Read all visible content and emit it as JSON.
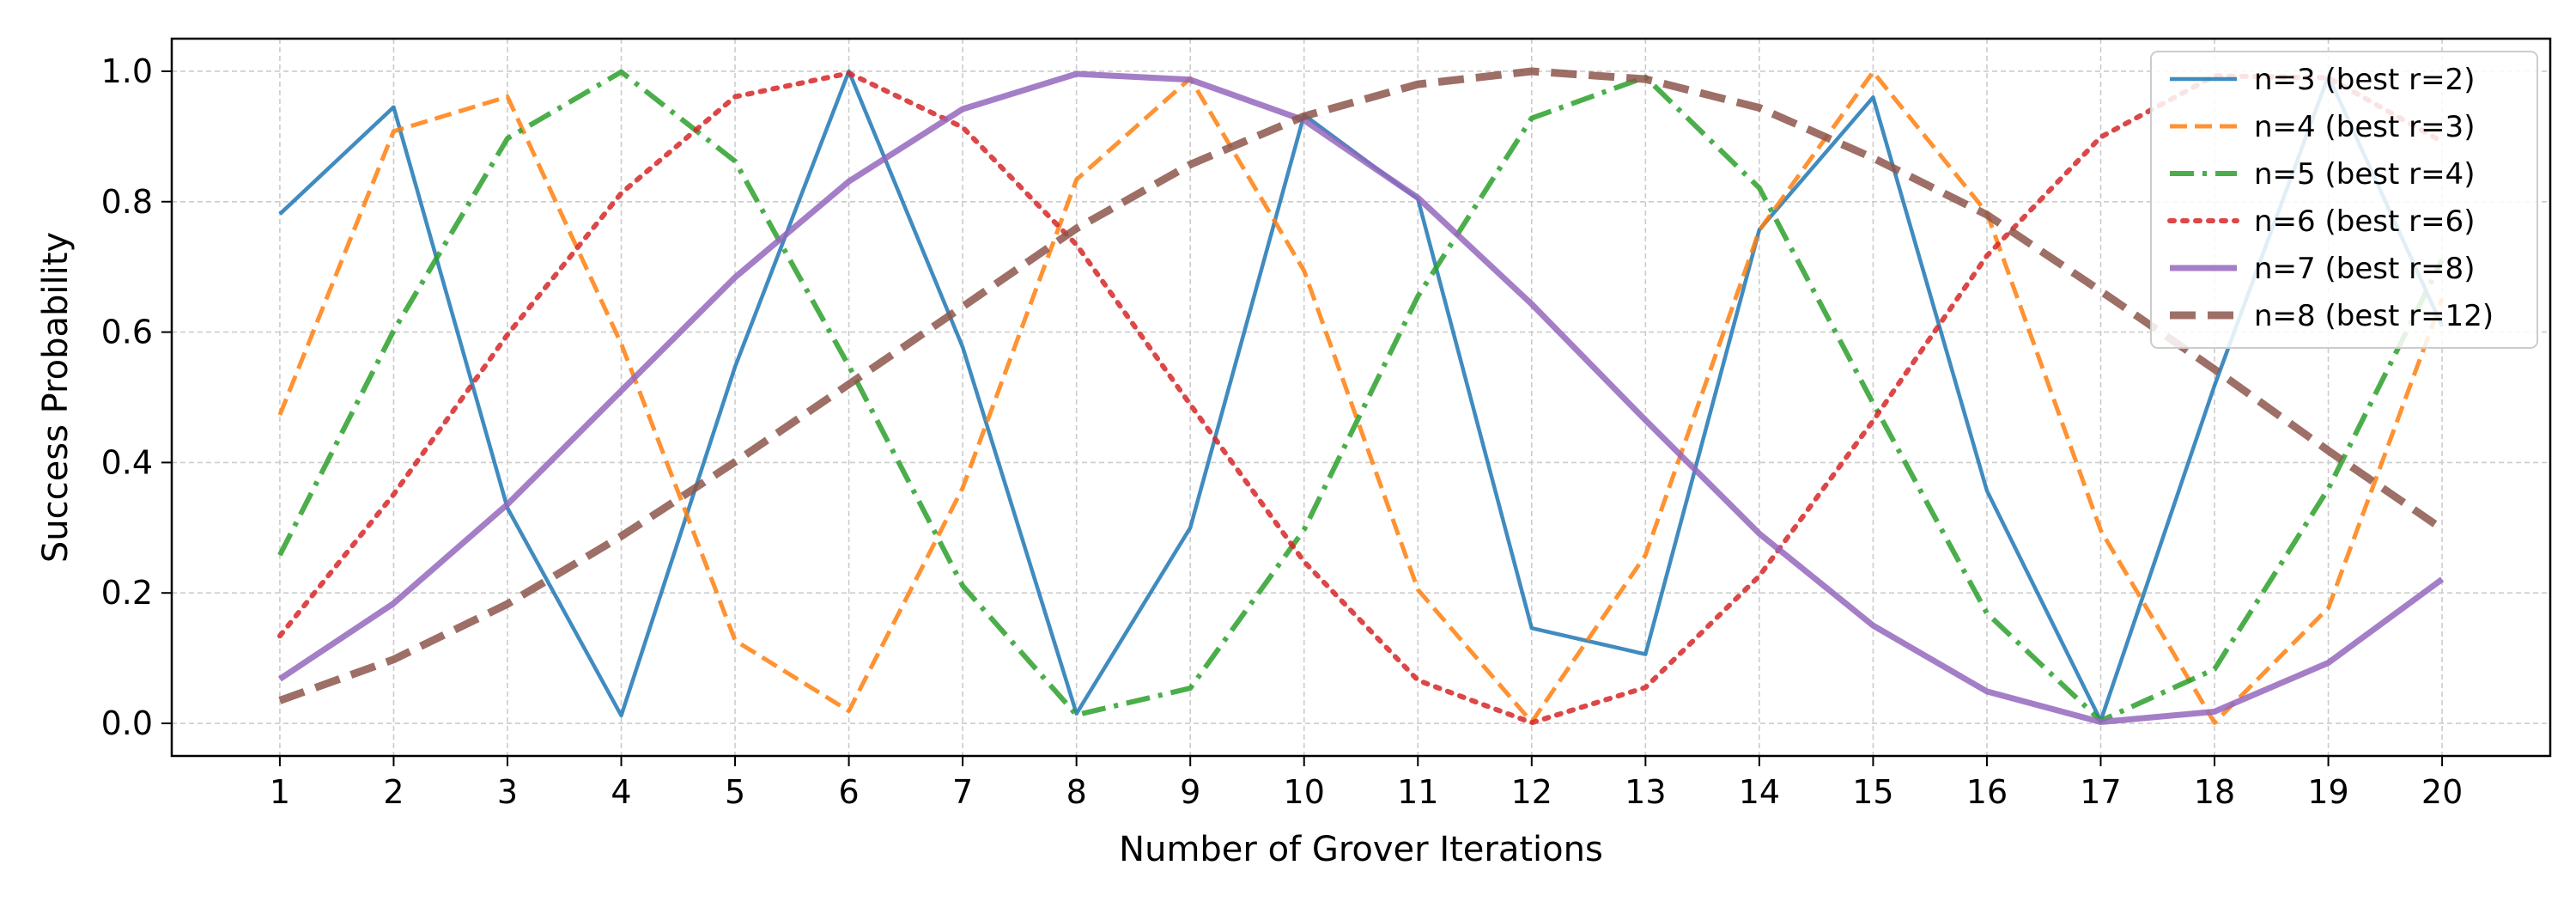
{
  "chart_data": {
    "type": "line",
    "title": "",
    "xlabel": "Number of Grover Iterations",
    "ylabel": "Success Probability",
    "xlim": [
      0.05,
      20.95
    ],
    "ylim": [
      -0.05,
      1.05
    ],
    "xticks": [
      1,
      2,
      3,
      4,
      5,
      6,
      7,
      8,
      9,
      10,
      11,
      12,
      13,
      14,
      15,
      16,
      17,
      18,
      19,
      20
    ],
    "yticks": [
      0.0,
      0.2,
      0.4,
      0.6,
      0.8,
      1.0
    ],
    "ytick_labels": [
      "0.0",
      "0.2",
      "0.4",
      "0.6",
      "0.8",
      "1.0"
    ],
    "grid": true,
    "legend_position": "top-right",
    "x": [
      1,
      2,
      3,
      4,
      5,
      6,
      7,
      8,
      9,
      10,
      11,
      12,
      13,
      14,
      15,
      16,
      17,
      18,
      19,
      20
    ],
    "series": [
      {
        "name": "n=3 (best r=2)",
        "color": "#1f77b4",
        "style": "solid",
        "values": [
          0.781,
          0.945,
          0.33,
          0.012,
          0.547,
          1.0,
          0.577,
          0.015,
          0.3,
          0.933,
          0.804,
          0.146,
          0.106,
          0.757,
          0.96,
          0.357,
          0.004,
          0.518,
          0.993,
          0.609
        ]
      },
      {
        "name": "n=4 (best r=3)",
        "color": "#ff7f0e",
        "style": "dashed",
        "values": [
          0.473,
          0.908,
          0.961,
          0.582,
          0.127,
          0.019,
          0.361,
          0.834,
          0.989,
          0.694,
          0.205,
          0.002,
          0.258,
          0.756,
          0.999,
          0.783,
          0.296,
          0.001,
          0.177,
          0.651
        ]
      },
      {
        "name": "n=5 (best r=4)",
        "color": "#2ca02c",
        "style": "dashdot",
        "values": [
          0.258,
          0.602,
          0.897,
          0.999,
          0.862,
          0.548,
          0.211,
          0.013,
          0.054,
          0.297,
          0.655,
          0.928,
          0.991,
          0.821,
          0.491,
          0.169,
          0.004,
          0.083,
          0.36,
          0.711
        ]
      },
      {
        "name": "n=6 (best r=6)",
        "color": "#d62728",
        "style": "dotted",
        "values": [
          0.134,
          0.351,
          0.596,
          0.813,
          0.961,
          0.997,
          0.914,
          0.734,
          0.489,
          0.248,
          0.066,
          0.001,
          0.055,
          0.226,
          0.464,
          0.717,
          0.899,
          0.993,
          0.99,
          0.892
        ]
      },
      {
        "name": "n=7 (best r=8)",
        "color": "#9467bd",
        "style": "solid-thick",
        "values": [
          0.068,
          0.184,
          0.336,
          0.51,
          0.684,
          0.831,
          0.942,
          0.996,
          0.987,
          0.925,
          0.806,
          0.643,
          0.465,
          0.291,
          0.15,
          0.049,
          0.002,
          0.018,
          0.093,
          0.221
        ]
      },
      {
        "name": "n=8 (best r=12)",
        "color": "#8c564b",
        "style": "dashed-thick",
        "values": [
          0.035,
          0.098,
          0.183,
          0.287,
          0.401,
          0.52,
          0.639,
          0.759,
          0.857,
          0.931,
          0.98,
          1.0,
          0.988,
          0.944,
          0.867,
          0.78,
          0.663,
          0.543,
          0.418,
          0.298
        ]
      }
    ]
  }
}
